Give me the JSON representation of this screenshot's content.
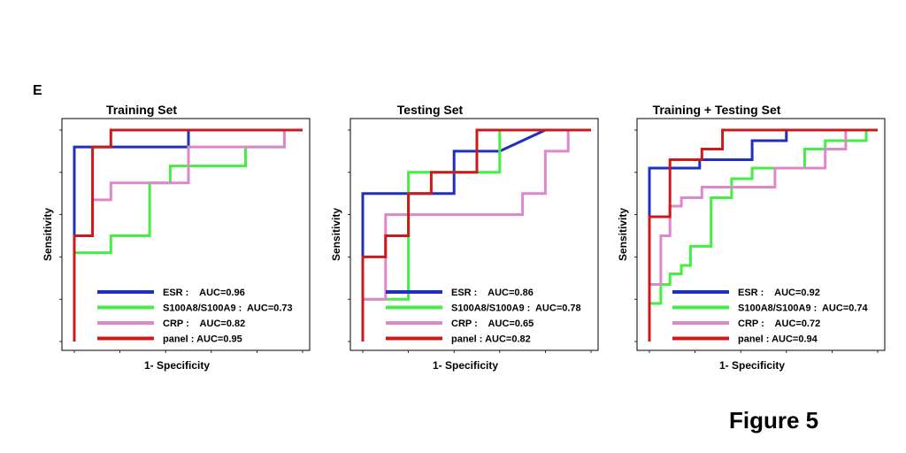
{
  "panel_label": "E",
  "figure_label": "Figure 5",
  "chart_data": [
    {
      "type": "line",
      "title": "Training Set",
      "xlabel": "1- Specificity",
      "ylabel": "Sensitivity",
      "xlim": [
        0,
        1
      ],
      "ylim": [
        0,
        1
      ],
      "series": [
        {
          "name": "ESR",
          "color": "#1f2fbf",
          "auc_label": "AUC=0.96",
          "x": [
            0,
            0,
            0.08,
            0.08,
            0.5,
            0.5,
            1.0
          ],
          "y": [
            0,
            0.92,
            0.92,
            0.92,
            0.92,
            1.0,
            1.0
          ]
        },
        {
          "name": "S100A8/S100A9",
          "color": "#44ee44",
          "auc_label": "AUC=0.73",
          "x": [
            0,
            0,
            0.16,
            0.16,
            0.33,
            0.33,
            0.42,
            0.42,
            0.75,
            0.75,
            0.92,
            0.92,
            1.0
          ],
          "y": [
            0,
            0.42,
            0.42,
            0.5,
            0.5,
            0.75,
            0.75,
            0.83,
            0.83,
            0.92,
            0.92,
            1.0,
            1.0
          ]
        },
        {
          "name": "CRP",
          "color": "#dd88cc",
          "auc_label": "AUC=0.82",
          "x": [
            0,
            0,
            0.08,
            0.08,
            0.16,
            0.16,
            0.5,
            0.5,
            0.92,
            0.92,
            1.0
          ],
          "y": [
            0,
            0.5,
            0.5,
            0.67,
            0.67,
            0.75,
            0.75,
            0.92,
            0.92,
            1.0,
            1.0
          ]
        },
        {
          "name": "panel",
          "color": "#cc1a1a",
          "auc_label": "AUC=0.95",
          "x": [
            0,
            0,
            0.08,
            0.08,
            0.16,
            0.16,
            1.0
          ],
          "y": [
            0,
            0.5,
            0.5,
            0.92,
            0.92,
            1.0,
            1.0
          ]
        }
      ],
      "legend": [
        {
          "label": "ESR :    AUC=0.96",
          "color": "#1f2fbf"
        },
        {
          "label": "S100A8/S100A9 :  AUC=0.73",
          "color": "#44ee44"
        },
        {
          "label": "CRP :    AUC=0.82",
          "color": "#dd88cc"
        },
        {
          "label": "panel : AUC=0.95",
          "color": "#cc1a1a"
        }
      ]
    },
    {
      "type": "line",
      "title": "Testing Set",
      "xlabel": "1- Specificity",
      "ylabel": "Sensitivity",
      "xlim": [
        0,
        1
      ],
      "ylim": [
        0,
        1
      ],
      "series": [
        {
          "name": "ESR",
          "color": "#1f2fbf",
          "auc_label": "AUC=0.86",
          "x": [
            0,
            0,
            0.4,
            0.4,
            0.6,
            0.6,
            0.8,
            1.0
          ],
          "y": [
            0,
            0.7,
            0.7,
            0.9,
            0.9,
            0.9,
            1.0,
            1.0
          ]
        },
        {
          "name": "S100A8/S100A9",
          "color": "#44ee44",
          "auc_label": "AUC=0.78",
          "x": [
            0,
            0,
            0.2,
            0.2,
            0.6,
            0.6,
            1.0
          ],
          "y": [
            0,
            0.2,
            0.2,
            0.8,
            0.8,
            1.0,
            1.0
          ]
        },
        {
          "name": "CRP",
          "color": "#dd88cc",
          "auc_label": "AUC=0.65",
          "x": [
            0,
            0,
            0.1,
            0.1,
            0.7,
            0.7,
            0.8,
            0.8,
            0.9,
            0.9,
            1.0
          ],
          "y": [
            0,
            0.2,
            0.2,
            0.6,
            0.6,
            0.7,
            0.7,
            0.9,
            0.9,
            1.0,
            1.0
          ]
        },
        {
          "name": "panel",
          "color": "#cc1a1a",
          "auc_label": "AUC=0.82",
          "x": [
            0,
            0,
            0.1,
            0.1,
            0.2,
            0.2,
            0.3,
            0.3,
            0.5,
            0.5,
            1.0
          ],
          "y": [
            0,
            0.4,
            0.4,
            0.5,
            0.5,
            0.7,
            0.7,
            0.8,
            0.8,
            1.0,
            1.0
          ]
        }
      ],
      "legend": [
        {
          "label": "ESR :    AUC=0.86",
          "color": "#1f2fbf"
        },
        {
          "label": "S100A8/S100A9 :  AUC=0.78",
          "color": "#44ee44"
        },
        {
          "label": "CRP :    AUC=0.65",
          "color": "#dd88cc"
        },
        {
          "label": "panel : AUC=0.82",
          "color": "#cc1a1a"
        }
      ]
    },
    {
      "type": "line",
      "title": "Training + Testing Set",
      "xlabel": "1- Specificity",
      "ylabel": "Sensitivity",
      "xlim": [
        0,
        1
      ],
      "ylim": [
        0,
        1
      ],
      "series": [
        {
          "name": "ESR",
          "color": "#1f2fbf",
          "auc_label": "AUC=0.92",
          "x": [
            0,
            0,
            0.22,
            0.22,
            0.45,
            0.45,
            0.6,
            0.6,
            1.0
          ],
          "y": [
            0,
            0.82,
            0.82,
            0.86,
            0.86,
            0.95,
            0.95,
            1.0,
            1.0
          ]
        },
        {
          "name": "S100A8/S100A9",
          "color": "#44ee44",
          "auc_label": "AUC=0.74",
          "x": [
            0,
            0,
            0.05,
            0.05,
            0.09,
            0.09,
            0.14,
            0.14,
            0.18,
            0.18,
            0.27,
            0.27,
            0.36,
            0.36,
            0.45,
            0.45,
            0.68,
            0.68,
            0.77,
            0.77,
            0.95,
            0.95,
            1.0
          ],
          "y": [
            0,
            0.18,
            0.18,
            0.27,
            0.27,
            0.32,
            0.32,
            0.36,
            0.36,
            0.45,
            0.45,
            0.68,
            0.68,
            0.77,
            0.77,
            0.82,
            0.82,
            0.91,
            0.91,
            0.95,
            0.95,
            1.0,
            1.0
          ]
        },
        {
          "name": "CRP",
          "color": "#dd88cc",
          "auc_label": "AUC=0.72",
          "x": [
            0,
            0,
            0.05,
            0.05,
            0.09,
            0.09,
            0.14,
            0.14,
            0.23,
            0.23,
            0.55,
            0.55,
            0.77,
            0.77,
            0.86,
            0.86,
            1.0
          ],
          "y": [
            0,
            0.27,
            0.27,
            0.5,
            0.5,
            0.64,
            0.64,
            0.68,
            0.68,
            0.73,
            0.73,
            0.82,
            0.82,
            0.91,
            0.91,
            1.0,
            1.0
          ]
        },
        {
          "name": "panel",
          "color": "#cc1a1a",
          "auc_label": "AUC=0.94",
          "x": [
            0,
            0,
            0.09,
            0.09,
            0.23,
            0.23,
            0.32,
            0.32,
            1.0
          ],
          "y": [
            0,
            0.59,
            0.59,
            0.86,
            0.86,
            0.91,
            0.91,
            1.0,
            1.0
          ]
        }
      ],
      "legend": [
        {
          "label": "ESR :    AUC=0.92",
          "color": "#1f2fbf"
        },
        {
          "label": "S100A8/S100A9 :  AUC=0.74",
          "color": "#44ee44"
        },
        {
          "label": "CRP :    AUC=0.72",
          "color": "#dd88cc"
        },
        {
          "label": "panel : AUC=0.94",
          "color": "#cc1a1a"
        }
      ]
    }
  ]
}
